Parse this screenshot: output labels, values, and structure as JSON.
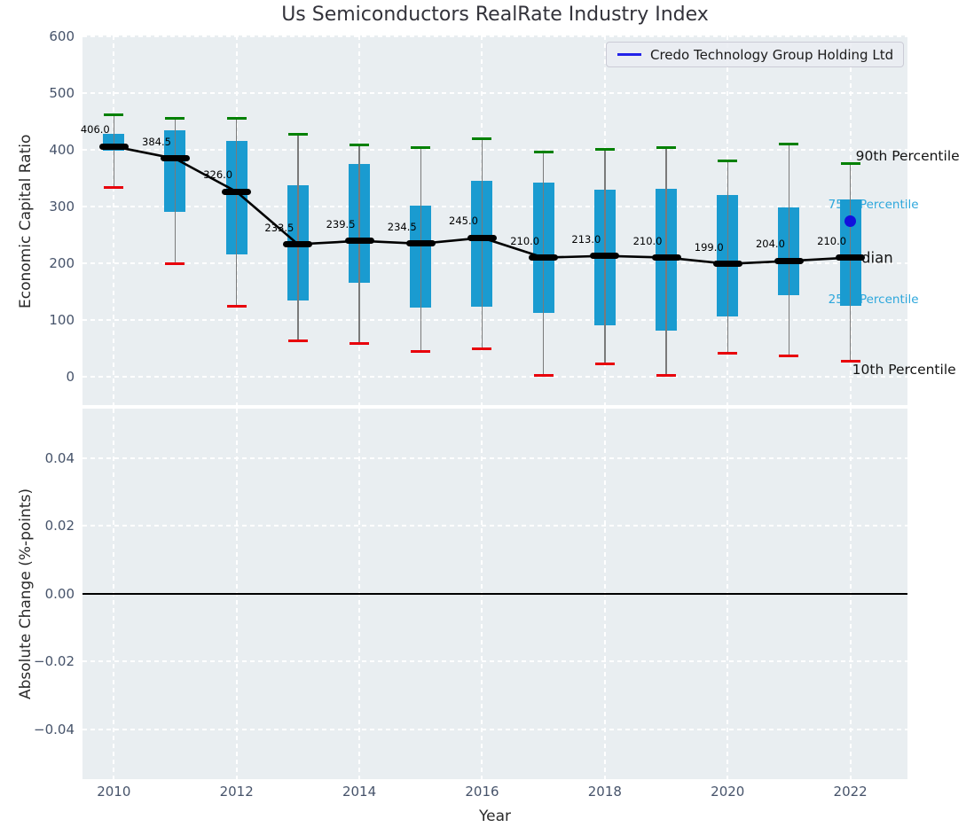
{
  "title": "Us Semiconductors RealRate Industry Index",
  "legend": {
    "label": "Credo Technology Group Holding Ltd",
    "line_color": "#2222e8"
  },
  "axes": {
    "top_ylabel": "Economic Capital Ratio",
    "bottom_ylabel": "Absolute Change (%-points)",
    "xlabel": "Year",
    "top_yticks": [
      "0",
      "100",
      "200",
      "300",
      "400",
      "500",
      "600"
    ],
    "top_ytick_values": [
      0,
      100,
      200,
      300,
      400,
      500,
      600
    ],
    "bottom_yticks": [
      "0.04",
      "0.02",
      "0.00",
      "−0.02",
      "−0.04"
    ],
    "bottom_ytick_values": [
      0.04,
      0.02,
      0.0,
      -0.02,
      -0.04
    ],
    "xticks": [
      "2010",
      "2012",
      "2014",
      "2016",
      "2018",
      "2020",
      "2022"
    ],
    "xtick_values": [
      2010,
      2012,
      2014,
      2016,
      2018,
      2020,
      2022
    ]
  },
  "annotations": [
    {
      "id": "p90",
      "text": "90th Percentile",
      "value": 389,
      "dx": 6,
      "size": 15.5,
      "color": "#141414"
    },
    {
      "id": "p75",
      "text": "75th Percentile",
      "value": 303,
      "dx": -25,
      "size": 13.5,
      "color": "#2da7dc"
    },
    {
      "id": "median",
      "text": "Median",
      "value": 210,
      "dx": -12,
      "size": 16.5,
      "color": "#141414"
    },
    {
      "id": "p25",
      "text": "25th Percentile",
      "value": 136,
      "dx": -25,
      "size": 13.5,
      "color": "#2da7dc"
    },
    {
      "id": "p10",
      "text": "10th Percentile",
      "value": 13,
      "dx": 2,
      "size": 15.5,
      "color": "#141414"
    }
  ],
  "colors": {
    "box": "#1a9bd0",
    "p90_cap": "#008000",
    "p10_cap": "#e8000b",
    "median": "#000000",
    "credo_point": "#1111dd",
    "panel_bg": "#e9eef1",
    "grid": "#ffffff",
    "tick_label": "#46536a"
  },
  "chart_data": {
    "type": "boxplot-timeseries",
    "title": "Us Semiconductors RealRate Industry Index",
    "xlabel": "Year",
    "grid": true,
    "legend_position": "upper right",
    "x": [
      2010,
      2011,
      2012,
      2013,
      2014,
      2015,
      2016,
      2017,
      2018,
      2019,
      2020,
      2021,
      2022
    ],
    "top_panel": {
      "ylabel": "Economic Capital Ratio",
      "ylim": [
        -50,
        601.6
      ],
      "xlim": [
        2009.49,
        2022.93
      ],
      "series": [
        {
          "name": "90th Percentile",
          "values": [
            462,
            456,
            456,
            427,
            409,
            404,
            420,
            396,
            401,
            404,
            380,
            410,
            376
          ]
        },
        {
          "name": "75th Percentile",
          "values": [
            428,
            435,
            416,
            337,
            375,
            302,
            345,
            342,
            330,
            331,
            321,
            299,
            313
          ]
        },
        {
          "name": "Median",
          "values": [
            406.0,
            384.5,
            326.0,
            233.5,
            239.5,
            234.5,
            245.0,
            210.0,
            213.0,
            210.0,
            199.0,
            204.0,
            210.0
          ]
        },
        {
          "name": "25th Percentile",
          "values": [
            398,
            290,
            215,
            135,
            165,
            122,
            124,
            113,
            90,
            82,
            107,
            144,
            125
          ]
        },
        {
          "name": "10th Percentile",
          "values": [
            333,
            200,
            125,
            63,
            58,
            45,
            50,
            3,
            22,
            2,
            42,
            36,
            27
          ]
        }
      ],
      "median_labels": [
        "406.0",
        "384.5",
        "326.0",
        "233.5",
        "239.5",
        "234.5",
        "245.0",
        "210.0",
        "213.0",
        "210.0",
        "199.0",
        "204.0",
        "210.0"
      ],
      "company_point": {
        "name": "Credo Technology Group Holding Ltd",
        "x": 2022,
        "y": 275
      }
    },
    "bottom_panel": {
      "ylabel": "Absolute Change (%-points)",
      "ylim": [
        -0.0547,
        0.0546
      ],
      "zero_line": 0.0,
      "series": []
    }
  }
}
